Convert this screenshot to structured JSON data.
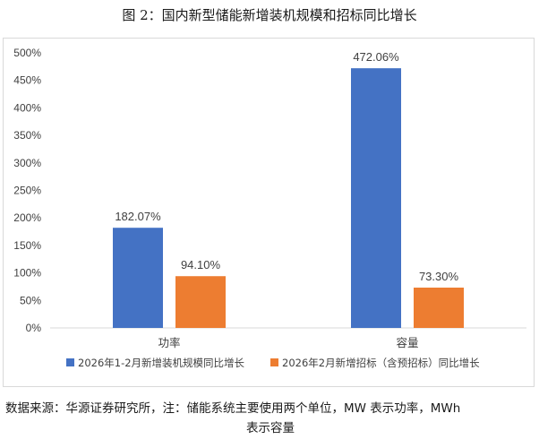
{
  "figure_title": "图 2：国内新型储能新增装机规模和招标同比增长",
  "source_note": {
    "line1": "数据来源：华源证券研究所，注：储能系统主要使用两个单位，MW 表示功率，MWh",
    "line2": "表示容量"
  },
  "colors": {
    "series1": "#4472c4",
    "series2": "#ed7d31",
    "grid": "#d9d9d9",
    "axis_text": "#404040"
  },
  "chart_data": {
    "type": "bar",
    "categories": [
      "功率",
      "容量"
    ],
    "series": [
      {
        "name": "2026年1-2月新增装机规模同比增长",
        "values": [
          182.07,
          472.06
        ],
        "labels": [
          "182.07%",
          "472.06%"
        ]
      },
      {
        "name": "2026年2月新增招标（含预招标）同比增长",
        "values": [
          94.1,
          73.3
        ],
        "labels": [
          "94.10%",
          "73.30%"
        ]
      }
    ],
    "yticks": [
      "0%",
      "50%",
      "100%",
      "150%",
      "200%",
      "250%",
      "300%",
      "350%",
      "400%",
      "450%",
      "500%"
    ],
    "ylim": [
      0,
      500
    ],
    "grid": false,
    "legend_position": "bottom"
  }
}
